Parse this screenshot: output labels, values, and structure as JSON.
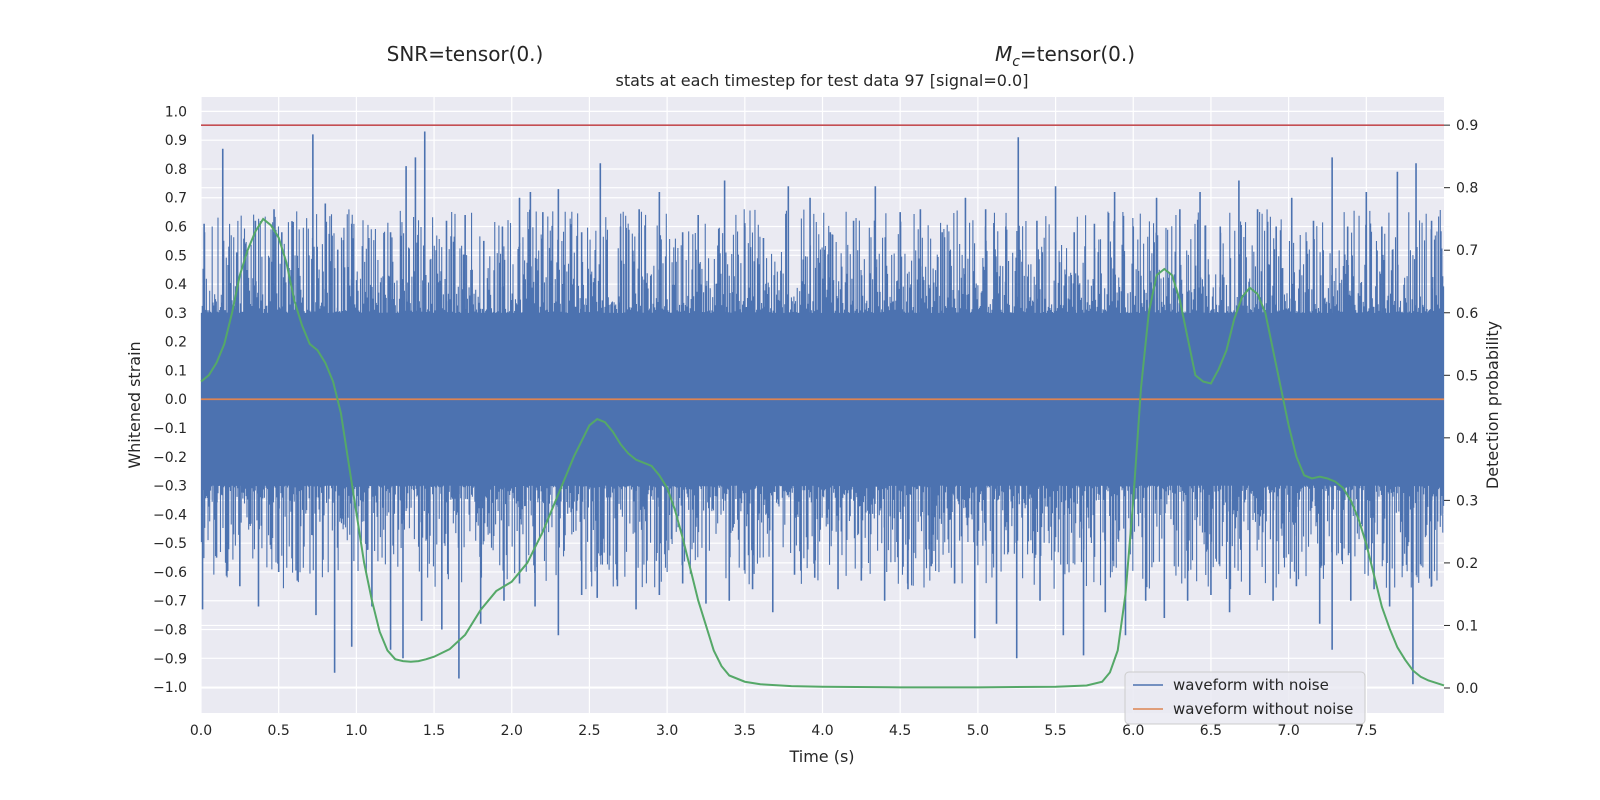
{
  "figure": {
    "titles": [
      "SNR=tensor(0.)",
      "M_c=tensor(0.)"
    ]
  },
  "chart_data": {
    "type": "line",
    "title": "stats at each timestep for test data 97 [signal=0.0]",
    "xlabel": "Time (s)",
    "ylabel": "Whitened strain",
    "y2label": "Detection probability",
    "xlim": [
      0.0,
      8.0
    ],
    "ylim": [
      -1.09,
      1.05
    ],
    "y2lim": [
      -0.04,
      0.945
    ],
    "xticks": [
      "0.0",
      "0.5",
      "1.0",
      "1.5",
      "2.0",
      "2.5",
      "3.0",
      "3.5",
      "4.0",
      "4.5",
      "5.0",
      "5.5",
      "6.0",
      "6.5",
      "7.0",
      "7.5"
    ],
    "yticks": [
      "1.0",
      "0.9",
      "0.8",
      "0.7",
      "0.6",
      "0.5",
      "0.4",
      "0.3",
      "0.2",
      "0.1",
      "0.0",
      "−0.1",
      "−0.2",
      "−0.3",
      "−0.4",
      "−0.5",
      "−0.6",
      "−0.7",
      "−0.8",
      "−0.9",
      "−1.0"
    ],
    "y2ticks": [
      "0.9",
      "0.8",
      "0.7",
      "0.6",
      "0.5",
      "0.4",
      "0.3",
      "0.2",
      "0.1",
      "0.0"
    ],
    "grid": true,
    "legend": {
      "placement": "lower right",
      "entries": [
        "waveform with noise",
        "waveform without noise"
      ]
    },
    "threshold": {
      "axis": "y2",
      "value": 0.9,
      "color": "#c44e52"
    },
    "colors": {
      "noise": "#4c72b0",
      "clean": "#dd8452",
      "prob": "#55a868",
      "background": "#eaeaf2"
    },
    "series": [
      {
        "name": "waveform with noise",
        "axis": "y",
        "kind": "noise-band",
        "upper_envelope": [
          [
            0.0,
            0.3
          ],
          [
            0.5,
            0.3
          ],
          [
            1.0,
            0.3
          ],
          [
            1.5,
            0.3
          ],
          [
            2.0,
            0.3
          ],
          [
            2.5,
            0.3
          ],
          [
            3.0,
            0.3
          ],
          [
            3.5,
            0.3
          ],
          [
            4.0,
            0.3
          ],
          [
            4.5,
            0.3
          ],
          [
            5.0,
            0.3
          ],
          [
            5.5,
            0.3
          ],
          [
            6.0,
            0.3
          ],
          [
            6.5,
            0.3
          ],
          [
            7.0,
            0.3
          ],
          [
            7.5,
            0.3
          ],
          [
            8.0,
            0.3
          ]
        ],
        "lower_envelope": [
          [
            0.0,
            -0.3
          ],
          [
            0.5,
            -0.3
          ],
          [
            1.0,
            -0.3
          ],
          [
            1.5,
            -0.3
          ],
          [
            2.0,
            -0.3
          ],
          [
            2.5,
            -0.3
          ],
          [
            3.0,
            -0.3
          ],
          [
            3.5,
            -0.3
          ],
          [
            4.0,
            -0.3
          ],
          [
            4.5,
            -0.3
          ],
          [
            5.0,
            -0.3
          ],
          [
            5.5,
            -0.3
          ],
          [
            6.0,
            -0.3
          ],
          [
            6.5,
            -0.3
          ],
          [
            7.0,
            -0.3
          ],
          [
            7.5,
            -0.3
          ],
          [
            8.0,
            -0.3
          ]
        ],
        "peaks": [
          [
            0.02,
            0.61
          ],
          [
            0.14,
            0.87
          ],
          [
            0.23,
            0.51
          ],
          [
            0.35,
            0.62
          ],
          [
            0.47,
            0.66
          ],
          [
            0.52,
            0.58
          ],
          [
            0.72,
            0.92
          ],
          [
            0.8,
            0.68
          ],
          [
            0.88,
            0.52
          ],
          [
            0.97,
            0.61
          ],
          [
            1.08,
            0.56
          ],
          [
            1.22,
            0.58
          ],
          [
            1.32,
            0.81
          ],
          [
            1.38,
            0.84
          ],
          [
            1.44,
            0.93
          ],
          [
            1.58,
            0.62
          ],
          [
            1.7,
            0.64
          ],
          [
            1.82,
            0.55
          ],
          [
            1.94,
            0.6
          ],
          [
            2.05,
            0.7
          ],
          [
            2.12,
            0.72
          ],
          [
            2.2,
            0.65
          ],
          [
            2.3,
            0.73
          ],
          [
            2.45,
            0.58
          ],
          [
            2.57,
            0.82
          ],
          [
            2.7,
            0.6
          ],
          [
            2.82,
            0.66
          ],
          [
            2.95,
            0.72
          ],
          [
            3.1,
            0.58
          ],
          [
            3.2,
            0.64
          ],
          [
            3.37,
            0.76
          ],
          [
            3.5,
            0.6
          ],
          [
            3.62,
            0.56
          ],
          [
            3.78,
            0.74
          ],
          [
            3.92,
            0.7
          ],
          [
            4.05,
            0.58
          ],
          [
            4.2,
            0.62
          ],
          [
            4.34,
            0.74
          ],
          [
            4.5,
            0.65
          ],
          [
            4.63,
            0.66
          ],
          [
            4.77,
            0.58
          ],
          [
            4.92,
            0.7
          ],
          [
            5.05,
            0.66
          ],
          [
            5.18,
            0.6
          ],
          [
            5.26,
            0.91
          ],
          [
            5.38,
            0.62
          ],
          [
            5.5,
            0.74
          ],
          [
            5.62,
            0.58
          ],
          [
            5.75,
            0.61
          ],
          [
            5.88,
            0.72
          ],
          [
            6.0,
            0.6
          ],
          [
            6.15,
            0.7
          ],
          [
            6.3,
            0.66
          ],
          [
            6.43,
            0.72
          ],
          [
            6.56,
            0.6
          ],
          [
            6.68,
            0.76
          ],
          [
            6.8,
            0.66
          ],
          [
            6.92,
            0.6
          ],
          [
            7.02,
            0.7
          ],
          [
            7.16,
            0.62
          ],
          [
            7.28,
            0.84
          ],
          [
            7.38,
            0.6
          ],
          [
            7.5,
            0.72
          ],
          [
            7.6,
            0.6
          ],
          [
            7.7,
            0.79
          ],
          [
            7.82,
            0.82
          ],
          [
            7.92,
            0.62
          ]
        ],
        "troughs": [
          [
            0.01,
            -0.73
          ],
          [
            0.1,
            -0.55
          ],
          [
            0.25,
            -0.65
          ],
          [
            0.37,
            -0.72
          ],
          [
            0.5,
            -0.6
          ],
          [
            0.62,
            -0.63
          ],
          [
            0.74,
            -0.75
          ],
          [
            0.86,
            -0.95
          ],
          [
            0.97,
            -0.86
          ],
          [
            1.1,
            -0.72
          ],
          [
            1.22,
            -0.87
          ],
          [
            1.3,
            -0.9
          ],
          [
            1.42,
            -0.77
          ],
          [
            1.55,
            -0.8
          ],
          [
            1.66,
            -0.97
          ],
          [
            1.8,
            -0.78
          ],
          [
            1.95,
            -0.7
          ],
          [
            2.05,
            -0.64
          ],
          [
            2.15,
            -0.72
          ],
          [
            2.3,
            -0.82
          ],
          [
            2.45,
            -0.68
          ],
          [
            2.55,
            -0.69
          ],
          [
            2.68,
            -0.65
          ],
          [
            2.8,
            -0.73
          ],
          [
            2.95,
            -0.68
          ],
          [
            3.1,
            -0.64
          ],
          [
            3.25,
            -0.71
          ],
          [
            3.4,
            -0.7
          ],
          [
            3.55,
            -0.66
          ],
          [
            3.68,
            -0.74
          ],
          [
            3.82,
            -0.61
          ],
          [
            3.95,
            -0.62
          ],
          [
            4.1,
            -0.66
          ],
          [
            4.25,
            -0.63
          ],
          [
            4.4,
            -0.7
          ],
          [
            4.55,
            -0.66
          ],
          [
            4.7,
            -0.58
          ],
          [
            4.85,
            -0.64
          ],
          [
            4.98,
            -0.83
          ],
          [
            5.12,
            -0.78
          ],
          [
            5.25,
            -0.9
          ],
          [
            5.4,
            -0.7
          ],
          [
            5.55,
            -0.82
          ],
          [
            5.68,
            -0.89
          ],
          [
            5.82,
            -0.74
          ],
          [
            5.95,
            -0.82
          ],
          [
            6.08,
            -0.7
          ],
          [
            6.2,
            -0.76
          ],
          [
            6.35,
            -0.7
          ],
          [
            6.5,
            -0.68
          ],
          [
            6.62,
            -0.74
          ],
          [
            6.75,
            -0.68
          ],
          [
            6.9,
            -0.7
          ],
          [
            7.05,
            -0.65
          ],
          [
            7.2,
            -0.78
          ],
          [
            7.28,
            -0.87
          ],
          [
            7.4,
            -0.7
          ],
          [
            7.55,
            -0.66
          ],
          [
            7.65,
            -0.72
          ],
          [
            7.8,
            -0.99
          ],
          [
            7.92,
            -0.65
          ]
        ]
      },
      {
        "name": "waveform without noise",
        "axis": "y",
        "x": [
          0.0,
          8.0
        ],
        "y": [
          0.0,
          0.0
        ]
      },
      {
        "axis": "y2",
        "x": [
          0.0,
          0.05,
          0.1,
          0.15,
          0.2,
          0.25,
          0.3,
          0.35,
          0.4,
          0.45,
          0.5,
          0.55,
          0.6,
          0.65,
          0.7,
          0.75,
          0.8,
          0.85,
          0.9,
          0.95,
          1.0,
          1.05,
          1.1,
          1.15,
          1.2,
          1.25,
          1.3,
          1.35,
          1.4,
          1.45,
          1.5,
          1.6,
          1.7,
          1.8,
          1.9,
          2.0,
          2.1,
          2.2,
          2.3,
          2.4,
          2.5,
          2.55,
          2.6,
          2.65,
          2.7,
          2.75,
          2.8,
          2.85,
          2.9,
          2.95,
          3.0,
          3.05,
          3.1,
          3.15,
          3.2,
          3.25,
          3.3,
          3.35,
          3.4,
          3.5,
          3.6,
          3.8,
          4.0,
          4.5,
          5.0,
          5.5,
          5.7,
          5.8,
          5.85,
          5.9,
          5.95,
          6.0,
          6.05,
          6.1,
          6.15,
          6.2,
          6.25,
          6.3,
          6.35,
          6.4,
          6.45,
          6.5,
          6.55,
          6.6,
          6.65,
          6.7,
          6.75,
          6.8,
          6.85,
          6.9,
          6.95,
          7.0,
          7.05,
          7.1,
          7.15,
          7.2,
          7.25,
          7.3,
          7.35,
          7.4,
          7.45,
          7.5,
          7.55,
          7.6,
          7.65,
          7.7,
          7.75,
          7.8,
          7.85,
          7.9,
          7.95,
          8.0
        ],
        "y": [
          0.49,
          0.5,
          0.52,
          0.55,
          0.6,
          0.66,
          0.7,
          0.73,
          0.75,
          0.74,
          0.72,
          0.68,
          0.62,
          0.58,
          0.55,
          0.54,
          0.52,
          0.49,
          0.44,
          0.36,
          0.28,
          0.2,
          0.14,
          0.09,
          0.06,
          0.046,
          0.043,
          0.042,
          0.043,
          0.046,
          0.05,
          0.062,
          0.085,
          0.125,
          0.155,
          0.17,
          0.2,
          0.25,
          0.31,
          0.37,
          0.42,
          0.43,
          0.425,
          0.41,
          0.39,
          0.375,
          0.365,
          0.36,
          0.355,
          0.34,
          0.32,
          0.285,
          0.24,
          0.19,
          0.14,
          0.1,
          0.06,
          0.035,
          0.02,
          0.01,
          0.006,
          0.003,
          0.002,
          0.001,
          0.001,
          0.002,
          0.004,
          0.01,
          0.025,
          0.06,
          0.15,
          0.3,
          0.48,
          0.6,
          0.66,
          0.67,
          0.66,
          0.62,
          0.56,
          0.5,
          0.49,
          0.487,
          0.51,
          0.54,
          0.59,
          0.625,
          0.64,
          0.63,
          0.6,
          0.54,
          0.48,
          0.42,
          0.37,
          0.34,
          0.335,
          0.338,
          0.335,
          0.33,
          0.32,
          0.3,
          0.27,
          0.23,
          0.18,
          0.13,
          0.095,
          0.065,
          0.045,
          0.028,
          0.018,
          0.012,
          0.008,
          0.004
        ]
      }
    ]
  }
}
